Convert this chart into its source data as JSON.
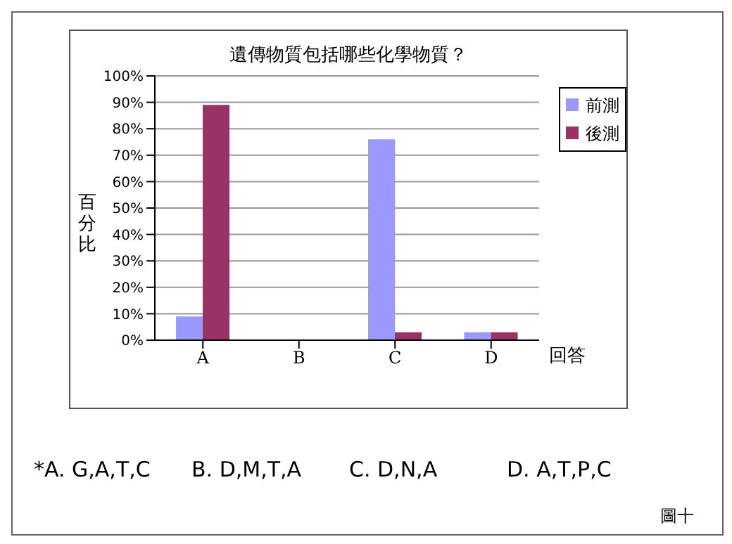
{
  "chart_data": {
    "type": "bar",
    "title": "遺傳物質包括哪些化學物質？",
    "xlabel": "回答",
    "ylabel": "百分比",
    "categories": [
      "A",
      "B",
      "C",
      "D"
    ],
    "series": [
      {
        "name": "前測",
        "color": "#9999ff",
        "values": [
          9,
          0,
          76,
          3
        ]
      },
      {
        "name": "後測",
        "color": "#993366",
        "values": [
          89,
          0,
          3,
          3
        ]
      }
    ],
    "ylim": [
      0,
      100
    ],
    "yticks": [
      {
        "value": 0,
        "label": "0%"
      },
      {
        "value": 10,
        "label": "10%"
      },
      {
        "value": 20,
        "label": "20%"
      },
      {
        "value": 30,
        "label": "30%"
      },
      {
        "value": 40,
        "label": "40%"
      },
      {
        "value": 50,
        "label": "50%"
      },
      {
        "value": 60,
        "label": "60%"
      },
      {
        "value": 70,
        "label": "70%"
      },
      {
        "value": 80,
        "label": "80%"
      },
      {
        "value": 90,
        "label": "90%"
      },
      {
        "value": 100,
        "label": "100%"
      }
    ],
    "grid": "y",
    "legend": "top right",
    "annotations": [
      "*A. G,A,T,C",
      "B. D,M,T,A",
      "C. D,N,A",
      "D. A,T,P,C",
      "圖十"
    ]
  }
}
